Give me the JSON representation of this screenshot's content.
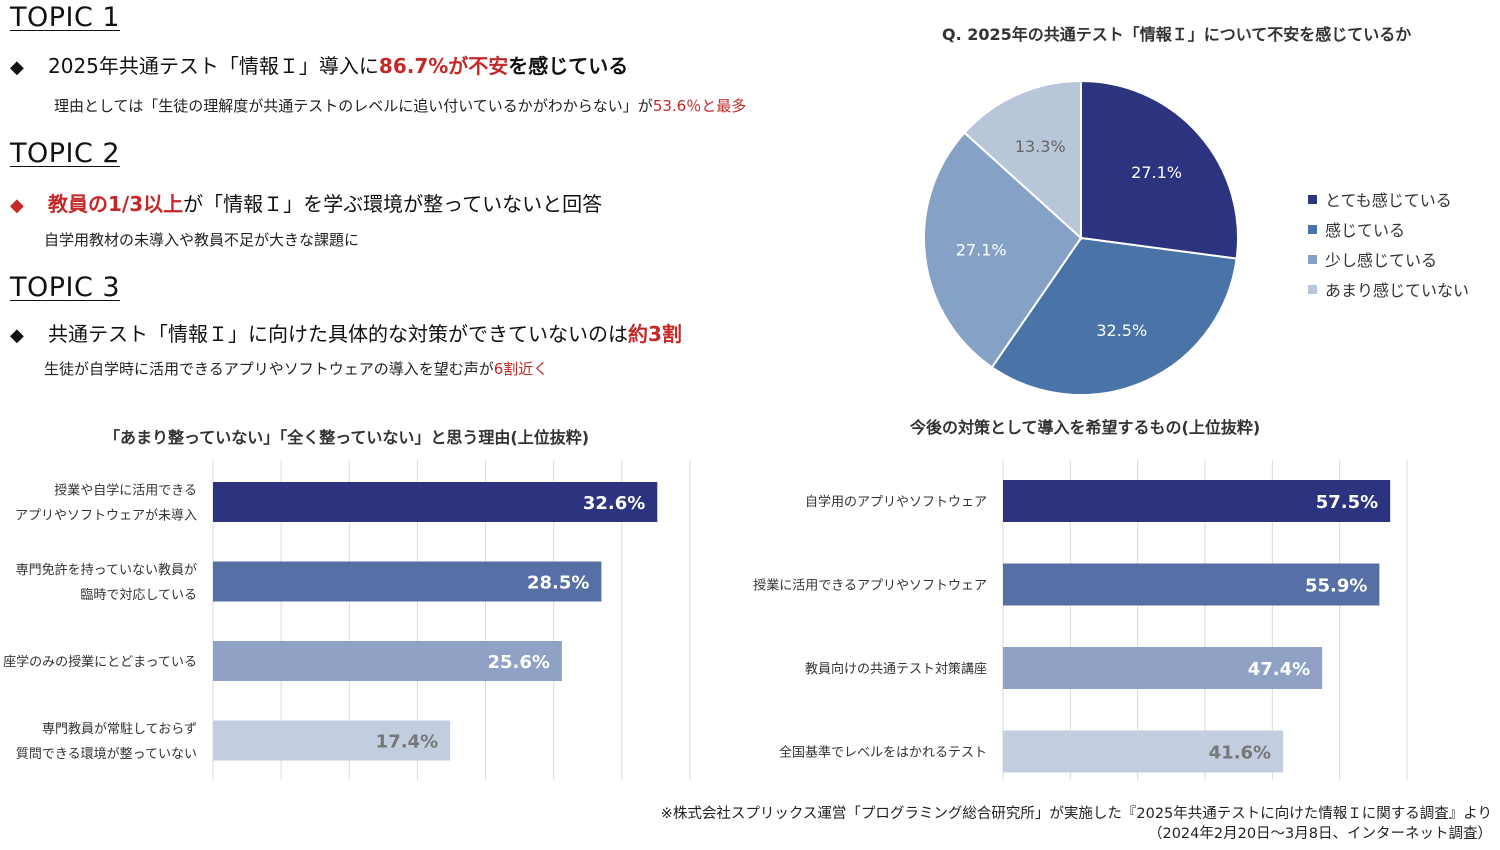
{
  "topics": [
    {
      "title": "TOPIC 1",
      "bullet_color": "#111111",
      "headline_pre": "2025年共通テスト「情報Ｉ」導入に",
      "headline_em": "86.7%が不安",
      "headline_post": "を感じている",
      "sub_pre": "理由としては「生徒の理解度が共通テストのレベルに追い付いているかがわからない」が",
      "sub_em": "53.6％と最多"
    },
    {
      "title": "TOPIC 2",
      "bullet_color": "#c62828",
      "headline_pre": "",
      "headline_em": "教員の1/3以上",
      "headline_post": "が「情報Ｉ」を学ぶ環境が整っていないと回答",
      "sub_pre": "自学用教材の未導入や教員不足が大きな課題に",
      "sub_em": ""
    },
    {
      "title": "TOPIC 3",
      "bullet_color": "#111111",
      "headline_pre": "共通テスト「情報Ｉ」に向けた具体的な対策ができていないのは",
      "headline_em": "約3割",
      "headline_post": "",
      "sub_pre": "生徒が自学時に活用できるアプリやソフトウェアの導入を望む声が",
      "sub_em": "6割近く"
    }
  ],
  "bullet_glyph": "◆",
  "footnote": {
    "line1": "※株式会社スプリックス運営「プログラミング総合研究所」が実施した『2025年共通テストに向けた情報Ｉに関する調査』より",
    "line2": "（2024年2月20日〜3月8日、インターネット調査）"
  },
  "chart_data": [
    {
      "type": "pie",
      "title": "Q. 2025年の共通テスト「情報Ｉ」について不安を感じているか",
      "legend_position": "right",
      "slices": [
        {
          "label": "とても感じている",
          "value": 27.1,
          "display": "27.1%",
          "color": "#2c3480"
        },
        {
          "label": "感じている",
          "value": 32.5,
          "display": "32.5%",
          "color": "#4a74a8"
        },
        {
          "label": "少し感じている",
          "value": 27.1,
          "display": "27.1%",
          "color": "#85a1c6"
        },
        {
          "label": "あまり感じていない",
          "value": 13.3,
          "display": "13.3%",
          "color": "#b8c6da"
        }
      ]
    },
    {
      "type": "bar",
      "orientation": "horizontal",
      "title": "「あまり整っていない」「全く整っていない」と思う理由(上位抜粋)",
      "grid": true,
      "xlim": [
        0,
        35
      ],
      "categories": [
        [
          "授業や自学に活用できる",
          "アプリやソフトウェアが未導入"
        ],
        [
          "専門免許を持っていない教員が",
          "臨時で対応している"
        ],
        [
          "座学のみの授業にとどまっている"
        ],
        [
          "専門教員が常駐しておらず",
          "質問できる環境が整っていない"
        ]
      ],
      "values": [
        32.6,
        28.5,
        25.6,
        17.4
      ],
      "value_labels": [
        "32.6%",
        "28.5%",
        "25.6%",
        "17.4%"
      ],
      "colors": [
        "#2c3480",
        "#5670a6",
        "#8fa2c6",
        "#c3cde0"
      ]
    },
    {
      "type": "bar",
      "orientation": "horizontal",
      "title": "今後の対策として導入を希望するもの(上位抜粋)",
      "grid": true,
      "xlim": [
        0,
        60
      ],
      "categories": [
        [
          "自学用のアプリやソフトウェア"
        ],
        [
          "授業に活用できるアプリやソフトウェア"
        ],
        [
          "教員向けの共通テスト対策講座"
        ],
        [
          "全国基準でレベルをはかれるテスト"
        ]
      ],
      "values": [
        57.5,
        55.9,
        47.4,
        41.6
      ],
      "value_labels": [
        "57.5%",
        "55.9%",
        "47.4%",
        "41.6%"
      ],
      "colors": [
        "#2c3480",
        "#5670a6",
        "#8fa2c6",
        "#c3cde0"
      ]
    }
  ]
}
